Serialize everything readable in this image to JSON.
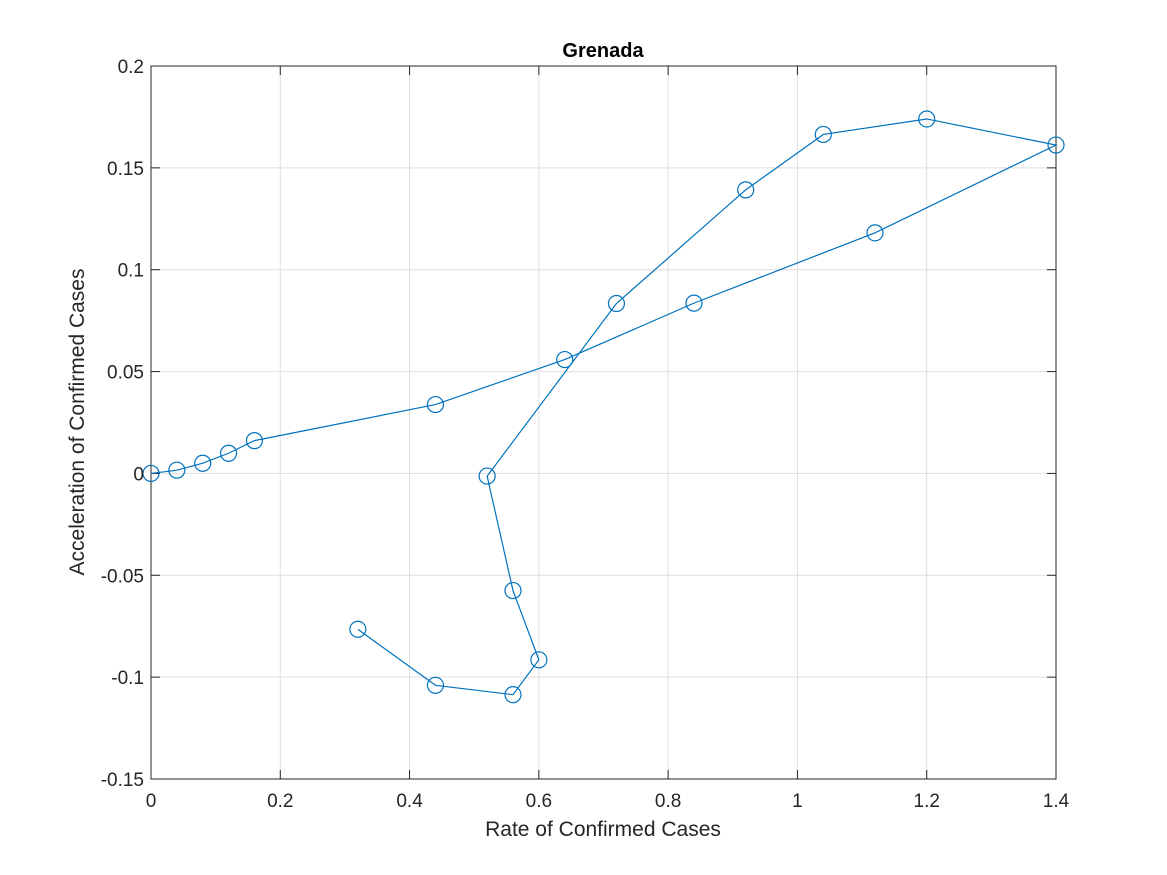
{
  "chart_data": {
    "type": "line",
    "title": "Grenada",
    "xlabel": "Rate of Confirmed Cases",
    "ylabel": "Acceleration of Confirmed Cases",
    "xlim": [
      0,
      1.4
    ],
    "ylim": [
      -0.15,
      0.2
    ],
    "xticks": [
      0,
      0.2,
      0.4,
      0.6,
      0.8,
      1,
      1.2,
      1.4
    ],
    "xtick_labels": [
      "0",
      "0.2",
      "0.4",
      "0.6",
      "0.8",
      "1",
      "1.2",
      "1.4"
    ],
    "yticks": [
      -0.15,
      -0.1,
      -0.05,
      0,
      0.05,
      0.1,
      0.15,
      0.2
    ],
    "ytick_labels": [
      "-0.15",
      "-0.1",
      "-0.05",
      "0",
      "0.05",
      "0.1",
      "0.15",
      "0.2"
    ],
    "grid": true,
    "marker": "circle",
    "series": [
      {
        "color": "#0072BD",
        "x": [
          0,
          0.04,
          0.08,
          0.12,
          0.16,
          0.44,
          0.64,
          0.84,
          1.12,
          1.4,
          1.2,
          1.04,
          0.92,
          0.72,
          0.52,
          0.56,
          0.6,
          0.56,
          0.44,
          0.32
        ],
        "y": [
          0,
          0.0016,
          0.005,
          0.0099,
          0.0161,
          0.0338,
          0.0559,
          0.0836,
          0.1181,
          0.1612,
          0.174,
          0.1664,
          0.1392,
          0.0834,
          -0.0013,
          -0.0575,
          -0.0915,
          -0.1086,
          -0.104,
          -0.0765
        ]
      }
    ]
  }
}
